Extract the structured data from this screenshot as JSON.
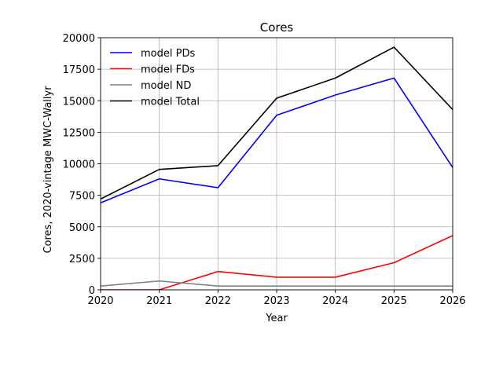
{
  "chart_data": {
    "type": "line",
    "title": "Cores",
    "xlabel": "Year",
    "ylabel": "Cores, 2020-vintage MWC-Wallyr",
    "x": [
      2020,
      2021,
      2022,
      2023,
      2024,
      2025,
      2026
    ],
    "xlim": [
      2020,
      2026
    ],
    "ylim": [
      0,
      20000
    ],
    "xticks": [
      "2020",
      "2021",
      "2022",
      "2023",
      "2024",
      "2025",
      "2026"
    ],
    "yticks": [
      "0",
      "2500",
      "5000",
      "7500",
      "10000",
      "12500",
      "15000",
      "17500",
      "20000"
    ],
    "grid": true,
    "legend_position": "top-left",
    "series": [
      {
        "name": "model PDs",
        "color": "#0000ff",
        "values": [
          6900,
          8800,
          8100,
          13850,
          15450,
          16800,
          9700
        ]
      },
      {
        "name": "model FDs",
        "color": "#ff0000",
        "values": [
          0,
          0,
          1450,
          1000,
          1000,
          2150,
          4300
        ]
      },
      {
        "name": "model ND",
        "color": "#808080",
        "values": [
          300,
          700,
          300,
          300,
          300,
          300,
          300
        ]
      },
      {
        "name": "model Total",
        "color": "#000000",
        "values": [
          7200,
          9550,
          9850,
          15200,
          16800,
          19250,
          14300
        ]
      }
    ]
  }
}
